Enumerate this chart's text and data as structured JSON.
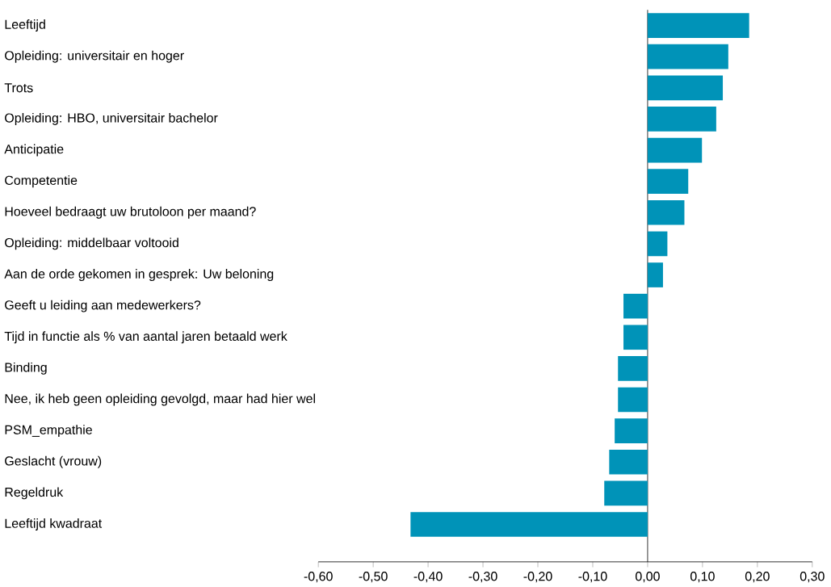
{
  "chart_data": {
    "type": "bar",
    "orientation": "horizontal",
    "categories": [
      "Leeftijd",
      "Opleiding: universitair en hoger",
      "Trots",
      "Opleiding: HBO, universitair bachelor",
      "Anticipatie",
      "Competentie",
      "Hoeveel bedraagt uw brutoloon per maand?",
      "Opleiding: middelbaar voltooid",
      "Aan de orde gekomen in gesprek: Uw beloning",
      "Geeft u leiding aan medewerkers?",
      "Tijd in functie als % van aantal jaren betaald werk",
      "Binding",
      "Nee, ik heb geen opleiding gevolgd, maar had hier wel",
      "PSM_empathie",
      "Geslacht (vrouw)",
      "Regeldruk",
      "Leeftijd kwadraat"
    ],
    "values": [
      0.185,
      0.147,
      0.137,
      0.125,
      0.099,
      0.074,
      0.067,
      0.036,
      0.028,
      -0.044,
      -0.044,
      -0.054,
      -0.054,
      -0.06,
      -0.07,
      -0.079,
      -0.432
    ],
    "color": "#0093b8",
    "xlim": [
      -0.6,
      0.3
    ],
    "xticks": [
      {
        "value": -0.6,
        "label": "-0,60"
      },
      {
        "value": -0.5,
        "label": "-0,50"
      },
      {
        "value": -0.4,
        "label": "-0,40"
      },
      {
        "value": -0.3,
        "label": "-0,30"
      },
      {
        "value": -0.2,
        "label": "-0,20"
      },
      {
        "value": -0.1,
        "label": "-0,10"
      },
      {
        "value": 0,
        "label": "0,00"
      },
      {
        "value": 0.1,
        "label": "0,10"
      },
      {
        "value": 0.2,
        "label": "0,20"
      },
      {
        "value": 0.3,
        "label": "0,30"
      }
    ]
  }
}
